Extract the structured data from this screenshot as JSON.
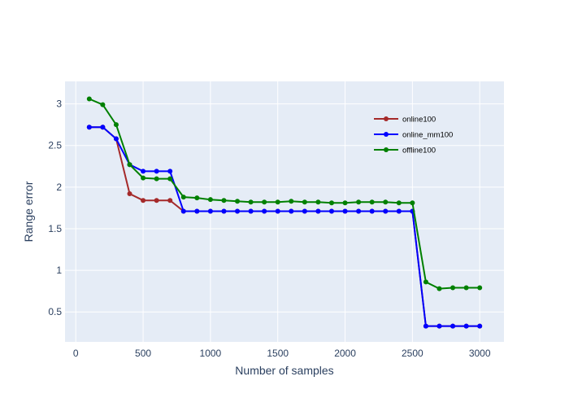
{
  "chart_data": {
    "type": "line",
    "title": "",
    "xlabel": "Number of samples",
    "ylabel": "Range error",
    "xlim": [
      -80,
      3180
    ],
    "ylim": [
      0.14,
      3.27
    ],
    "x_ticks": [
      0,
      500,
      1000,
      1500,
      2000,
      2500,
      3000
    ],
    "x_tick_labels": [
      "0",
      "500",
      "1000",
      "1500",
      "2000",
      "2500",
      "3000"
    ],
    "y_ticks": [
      0.5,
      1,
      1.5,
      2,
      2.5,
      3
    ],
    "y_tick_labels": [
      "0.5",
      "1",
      "1.5",
      "2",
      "2.5",
      "3"
    ],
    "grid": true,
    "legend_position": "top-right",
    "plot_background": "#e5ecf6",
    "x": [
      100,
      200,
      300,
      400,
      500,
      600,
      700,
      800,
      900,
      1000,
      1100,
      1200,
      1300,
      1400,
      1500,
      1600,
      1700,
      1800,
      1900,
      2000,
      2100,
      2200,
      2300,
      2400,
      2500,
      2600,
      2700,
      2800,
      2900,
      3000
    ],
    "series": [
      {
        "name": "online100",
        "color": "#a52a2a",
        "values": [
          2.72,
          2.72,
          2.58,
          1.92,
          1.84,
          1.84,
          1.84,
          1.71,
          1.71,
          1.71,
          1.71,
          1.71,
          1.71,
          1.71,
          1.71,
          1.71,
          1.71,
          1.71,
          1.71,
          1.71,
          1.71,
          1.71,
          1.71,
          1.71,
          1.71,
          0.33,
          0.33,
          0.33,
          0.33,
          0.33
        ]
      },
      {
        "name": "online_mm100",
        "color": "#0000ff",
        "values": [
          2.72,
          2.72,
          2.58,
          2.27,
          2.19,
          2.19,
          2.19,
          1.71,
          1.71,
          1.71,
          1.71,
          1.71,
          1.71,
          1.71,
          1.71,
          1.71,
          1.71,
          1.71,
          1.71,
          1.71,
          1.71,
          1.71,
          1.71,
          1.71,
          1.71,
          0.33,
          0.33,
          0.33,
          0.33,
          0.33
        ]
      },
      {
        "name": "offline100",
        "color": "#008000",
        "values": [
          3.06,
          2.99,
          2.75,
          2.27,
          2.11,
          2.1,
          2.1,
          1.88,
          1.87,
          1.85,
          1.84,
          1.83,
          1.82,
          1.82,
          1.82,
          1.83,
          1.82,
          1.82,
          1.81,
          1.81,
          1.82,
          1.82,
          1.82,
          1.81,
          1.81,
          0.86,
          0.78,
          0.79,
          0.79,
          0.79
        ]
      }
    ]
  }
}
